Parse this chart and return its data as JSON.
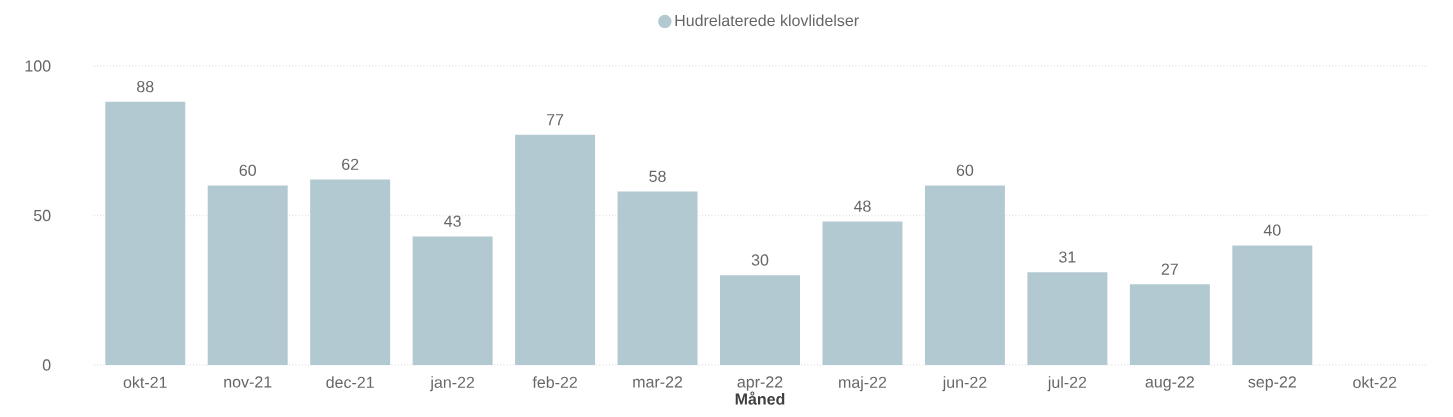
{
  "chart_data": {
    "type": "bar",
    "categories": [
      "okt-21",
      "nov-21",
      "dec-21",
      "jan-22",
      "feb-22",
      "mar-22",
      "apr-22",
      "maj-22",
      "jun-22",
      "jul-22",
      "aug-22",
      "sep-22",
      "okt-22"
    ],
    "series": [
      {
        "name": "Hudrelaterede klovlidelser",
        "color": "#b3c9d1",
        "values": [
          88,
          60,
          62,
          43,
          77,
          58,
          30,
          48,
          60,
          31,
          27,
          40,
          null
        ]
      }
    ],
    "xlabel": "Måned",
    "ylim": [
      0,
      100
    ],
    "yticks": [
      0,
      50,
      100
    ],
    "grid": "y",
    "legend": "top",
    "data_labels": true
  }
}
